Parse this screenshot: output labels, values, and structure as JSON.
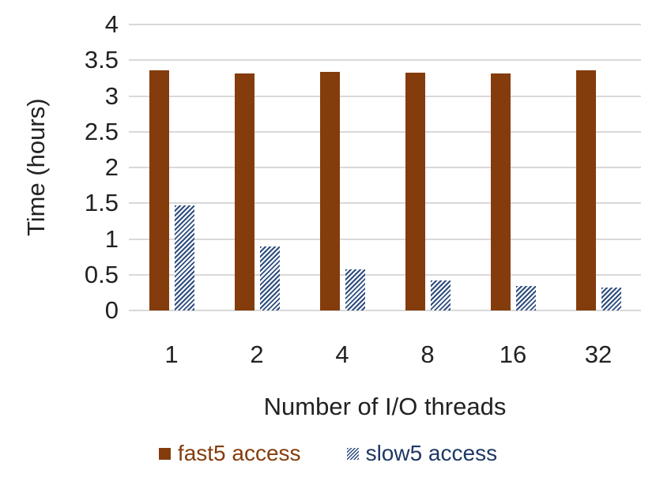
{
  "chart_data": {
    "type": "bar",
    "title": "",
    "xlabel": "Number of I/O threads",
    "ylabel": "Time (hours)",
    "categories": [
      "1",
      "2",
      "4",
      "8",
      "16",
      "32"
    ],
    "series": [
      {
        "name": "fast5 access",
        "pattern": "solid",
        "color": "#843C0C",
        "label_color": "#843C0C",
        "values": [
          3.36,
          3.31,
          3.34,
          3.33,
          3.32,
          3.36
        ]
      },
      {
        "name": "slow5 access",
        "pattern": "diagonal-hatch",
        "color": "#2E4D7E",
        "label_color": "#1F3864",
        "values": [
          1.47,
          0.89,
          0.57,
          0.42,
          0.34,
          0.32
        ]
      }
    ],
    "ylim": [
      0,
      4
    ],
    "ytick_step": 0.5,
    "yticks": [
      "4",
      "3.5",
      "3",
      "2.5",
      "2",
      "1.5",
      "1",
      "0.5",
      "0"
    ],
    "grid": true,
    "gridline_color": "#D9D9D9",
    "axis_text_color": "#222222",
    "legend_position": "bottom"
  }
}
